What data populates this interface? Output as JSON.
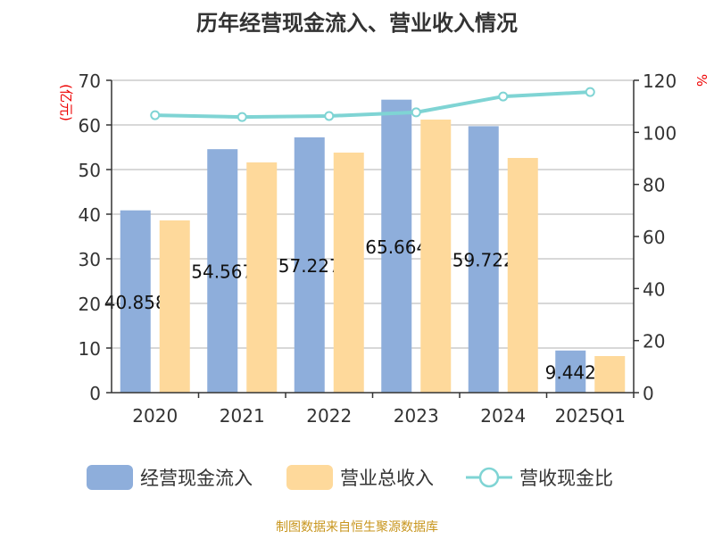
{
  "chart_data": {
    "type": "bar",
    "title": "历年经营现金流入、营业收入情况",
    "categories": [
      "2020",
      "2021",
      "2022",
      "2023",
      "2024",
      "2025Q1"
    ],
    "left_axis": {
      "label": "(亿元)",
      "ylim": [
        0,
        70
      ],
      "ticks": [
        "0",
        "10",
        "20",
        "30",
        "40",
        "50",
        "60",
        "70"
      ]
    },
    "right_axis": {
      "label": "%",
      "ylim": [
        0,
        120
      ],
      "ticks": [
        "0",
        "20",
        "40",
        "60",
        "80",
        "100",
        "120"
      ]
    },
    "grid": true,
    "legend_position": "bottom",
    "series": [
      {
        "name": "经营现金流入",
        "type": "bar",
        "axis": "left",
        "color": "#8eaedb",
        "values": [
          40.858,
          54.567,
          57.227,
          65.664,
          59.722,
          9.442
        ],
        "labels": [
          "40.858",
          "54.567",
          "57.227",
          "65.664",
          "59.722",
          "9.442"
        ]
      },
      {
        "name": "营业总收入",
        "type": "bar",
        "axis": "left",
        "color": "#fed99b",
        "values": [
          38.6,
          51.6,
          53.8,
          61.2,
          52.6,
          8.2
        ]
      },
      {
        "name": "营收现金比",
        "type": "line",
        "axis": "right",
        "color": "#7fd4d4",
        "values": [
          106.6,
          105.9,
          106.3,
          107.7,
          113.8,
          115.5
        ]
      }
    ],
    "source": "制图数据来自恒生聚源数据库"
  }
}
